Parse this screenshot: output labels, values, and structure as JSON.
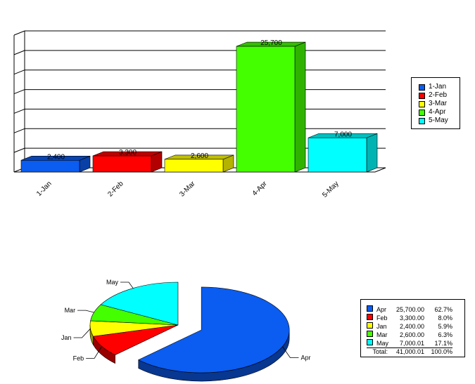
{
  "chart_data": [
    {
      "type": "bar",
      "categories": [
        "1-Jan",
        "2-Feb",
        "3-Mar",
        "4-Apr",
        "5-May"
      ],
      "values": [
        2400,
        3300,
        2600,
        25700,
        7000
      ],
      "data_labels": [
        "2,400",
        "3,300",
        "2,600",
        "25,700",
        "7,000"
      ],
      "colors": [
        "#0b5cf0",
        "#ff0000",
        "#ffff00",
        "#44ff00",
        "#00ffff"
      ],
      "ylim": [
        0,
        28000
      ],
      "grid": true,
      "3d": true,
      "legend": [
        "1-Jan",
        "2-Feb",
        "3-Mar",
        "4-Apr",
        "5-May"
      ],
      "legend_placement": "right"
    },
    {
      "type": "pie",
      "exploded": true,
      "3d": true,
      "slices": [
        {
          "label": "Apr",
          "value": 25700.0,
          "value_text": "25,700.00",
          "pct": "62.7%",
          "color": "#0b5cf0"
        },
        {
          "label": "Feb",
          "value": 3300.0,
          "value_text": "3,300.00",
          "pct": "8.0%",
          "color": "#ff0000"
        },
        {
          "label": "Jan",
          "value": 2400.0,
          "value_text": "2,400.00",
          "pct": "5.9%",
          "color": "#ffff00"
        },
        {
          "label": "Mar",
          "value": 2600.0,
          "value_text": "2,600.00",
          "pct": "6.3%",
          "color": "#44ff00"
        },
        {
          "label": "May",
          "value": 7000.01,
          "value_text": "7,000.01",
          "pct": "17.1%",
          "color": "#00ffff"
        }
      ],
      "total_label": "Total:",
      "total_value": "41,000.01",
      "total_pct": "100.0%",
      "legend_placement": "right"
    }
  ]
}
